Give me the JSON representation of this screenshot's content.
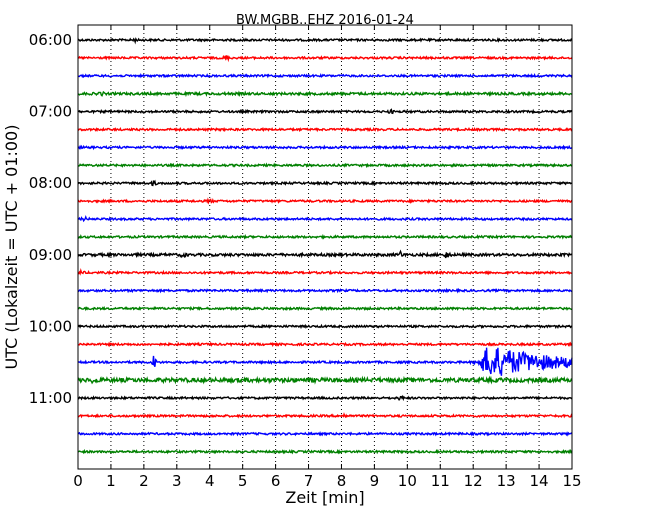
{
  "chart_data": {
    "type": "line",
    "title": "BW.MGBB..EHZ 2016-01-24",
    "xlabel": "Zeit  [min]",
    "ylabel": "UTC (Lokalzeit = UTC + 01:00)",
    "xlim": [
      0,
      15
    ],
    "x_ticks": [
      "0",
      "1",
      "2",
      "3",
      "4",
      "5",
      "6",
      "7",
      "8",
      "9",
      "10",
      "11",
      "12",
      "13",
      "14",
      "15"
    ],
    "y_ticks": [
      "06:00",
      "07:00",
      "08:00",
      "09:00",
      "10:00",
      "11:00"
    ],
    "grid": true,
    "trace_interval_min": 15,
    "color_cycle": [
      "#000000",
      "#ff0000",
      "#0000ff",
      "#008000"
    ],
    "traces": [
      {
        "start": "06:00",
        "color": "#000000",
        "amplitude": 1.0,
        "events": [
          {
            "x": 1.7,
            "amp": 1.5
          }
        ]
      },
      {
        "start": "06:15",
        "color": "#ff0000",
        "amplitude": 1.0,
        "events": [
          {
            "x": 4.5,
            "amp": 2
          }
        ]
      },
      {
        "start": "06:30",
        "color": "#0000ff",
        "amplitude": 1.0,
        "events": []
      },
      {
        "start": "06:45",
        "color": "#008000",
        "amplitude": 1.2,
        "events": [
          {
            "x": 0.7,
            "amp": 1.5
          }
        ]
      },
      {
        "start": "07:00",
        "color": "#000000",
        "amplitude": 1.0,
        "events": [
          {
            "x": 9.5,
            "amp": 1.5
          }
        ]
      },
      {
        "start": "07:15",
        "color": "#ff0000",
        "amplitude": 1.0,
        "events": []
      },
      {
        "start": "07:30",
        "color": "#0000ff",
        "amplitude": 1.0,
        "events": []
      },
      {
        "start": "07:45",
        "color": "#008000",
        "amplitude": 1.0,
        "events": []
      },
      {
        "start": "08:00",
        "color": "#000000",
        "amplitude": 1.0,
        "events": [
          {
            "x": 2.3,
            "amp": 2
          }
        ]
      },
      {
        "start": "08:15",
        "color": "#ff0000",
        "amplitude": 1.0,
        "events": [
          {
            "x": 4.0,
            "amp": 1.5
          }
        ]
      },
      {
        "start": "08:30",
        "color": "#0000ff",
        "amplitude": 1.0,
        "events": [
          {
            "x": 0.2,
            "amp": 1.5
          }
        ]
      },
      {
        "start": "08:45",
        "color": "#008000",
        "amplitude": 1.0,
        "events": []
      },
      {
        "start": "09:00",
        "color": "#000000",
        "amplitude": 1.3,
        "events": [
          {
            "x": 3.2,
            "amp": 2
          },
          {
            "x": 9.8,
            "amp": 2.5
          },
          {
            "x": 11.2,
            "amp": 3
          }
        ]
      },
      {
        "start": "09:15",
        "color": "#ff0000",
        "amplitude": 1.0,
        "events": [
          {
            "x": 0.1,
            "amp": 2
          }
        ]
      },
      {
        "start": "09:30",
        "color": "#0000ff",
        "amplitude": 1.0,
        "events": []
      },
      {
        "start": "09:45",
        "color": "#008000",
        "amplitude": 1.0,
        "events": []
      },
      {
        "start": "10:00",
        "color": "#000000",
        "amplitude": 1.0,
        "events": []
      },
      {
        "start": "10:15",
        "color": "#ff0000",
        "amplitude": 1.0,
        "events": []
      },
      {
        "start": "10:30",
        "color": "#0000ff",
        "amplitude": 1.0,
        "events": [
          {
            "x": 2.3,
            "amp": 6
          },
          {
            "x": 12.5,
            "amp": 16
          }
        ]
      },
      {
        "start": "10:45",
        "color": "#008000",
        "amplitude": 2.0,
        "events": [
          {
            "x": 0.5,
            "amp": 2.5
          }
        ]
      },
      {
        "start": "11:00",
        "color": "#000000",
        "amplitude": 1.0,
        "events": [
          {
            "x": 9.8,
            "amp": 1.5
          }
        ]
      },
      {
        "start": "11:15",
        "color": "#ff0000",
        "amplitude": 1.0,
        "events": [
          {
            "x": 8.1,
            "amp": 1.5
          }
        ]
      },
      {
        "start": "11:30",
        "color": "#0000ff",
        "amplitude": 1.0,
        "events": []
      },
      {
        "start": "11:45",
        "color": "#008000",
        "amplitude": 1.0,
        "events": []
      }
    ]
  }
}
